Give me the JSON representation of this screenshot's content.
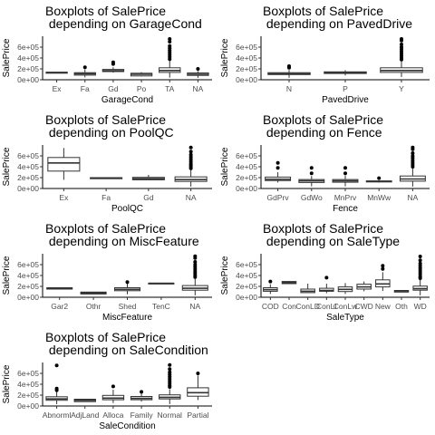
{
  "charts": [
    {
      "title_line1": "Boxplots of SalePrice",
      "title_line2": " depending on GarageCond",
      "xlabel": "GarageCond",
      "ylabel": "SalePrice",
      "categories": [
        "Ex",
        "Fa",
        "Gd",
        "Po",
        "TA",
        "NA"
      ]
    },
    {
      "title_line1": "Boxplots of SalePrice",
      "title_line2": " depending on PavedDrive",
      "xlabel": "PavedDrive",
      "ylabel": "SalePrice",
      "categories": [
        "N",
        "P",
        "Y"
      ]
    },
    {
      "title_line1": "Boxplots of SalePrice",
      "title_line2": " depending on PoolQC",
      "xlabel": "PoolQC",
      "ylabel": "SalePrice",
      "categories": [
        "Ex",
        "Fa",
        "Gd",
        "NA"
      ]
    },
    {
      "title_line1": "Boxplots of SalePrice",
      "title_line2": " depending on Fence",
      "xlabel": "Fence",
      "ylabel": "SalePrice",
      "categories": [
        "GdPrv",
        "GdWo",
        "MnPrv",
        "MnWw",
        "NA"
      ]
    },
    {
      "title_line1": "Boxplots of SalePrice",
      "title_line2": " depending on MiscFeature",
      "xlabel": "MiscFeature",
      "ylabel": "SalePrice",
      "categories": [
        "Gar2",
        "Othr",
        "Shed",
        "TenC",
        "NA"
      ]
    },
    {
      "title_line1": "Boxplots of SalePrice",
      "title_line2": " depending on SaleType",
      "xlabel": "SaleType",
      "ylabel": "SalePrice",
      "categories": [
        "COD",
        "Con",
        "ConLD",
        "ConLI",
        "ConLw",
        "CWD",
        "New",
        "Oth",
        "WD"
      ],
      "tick_labels": [
        "COD",
        "Con",
        "ConLD",
        "ConLI",
        "ConLw",
        "CWD",
        "New",
        "Oth",
        "WD"
      ]
    },
    {
      "title_line1": "Boxplots of SalePrice",
      "title_line2": " depending on SaleCondition",
      "xlabel": "SaleCondition",
      "ylabel": "SalePrice",
      "categories": [
        "Abnorml",
        "AdjLand",
        "Alloca",
        "Family",
        "Normal",
        "Partial"
      ],
      "tick_labels": [
        "Abnorml",
        "AdjLand",
        "Alloca",
        "Family",
        "Normal",
        "Partial"
      ]
    }
  ],
  "chart_data": [
    {
      "type": "box",
      "categories": [
        "Ex",
        "Fa",
        "Gd",
        "Po",
        "TA",
        "NA"
      ],
      "ylim": [
        0,
        800000
      ],
      "yticks": [
        0,
        200000,
        400000,
        600000
      ],
      "ytick_labels": [
        "0e+00",
        "2e+05",
        "4e+05",
        "6e+05"
      ],
      "boxes": [
        {
          "q1": 120000,
          "med": 130000,
          "q3": 140000,
          "lo": 120000,
          "hi": 140000,
          "out": []
        },
        {
          "q1": 85000,
          "med": 110000,
          "q3": 130000,
          "lo": 45000,
          "hi": 190000,
          "out": [
            230000
          ]
        },
        {
          "q1": 150000,
          "med": 165000,
          "q3": 190000,
          "lo": 130000,
          "hi": 230000,
          "out": [
            290000,
            320000
          ]
        },
        {
          "q1": 70000,
          "med": 100000,
          "q3": 120000,
          "lo": 60000,
          "hi": 140000,
          "out": []
        },
        {
          "q1": 135000,
          "med": 170000,
          "q3": 220000,
          "lo": 40000,
          "hi": 350000,
          "out": [
            380000,
            420000,
            460000,
            500000,
            540000,
            580000,
            620000,
            700000,
            750000
          ]
        },
        {
          "q1": 80000,
          "med": 100000,
          "q3": 125000,
          "lo": 35000,
          "hi": 160000,
          "out": [
            200000
          ]
        }
      ]
    },
    {
      "type": "box",
      "categories": [
        "N",
        "P",
        "Y"
      ],
      "ylim": [
        0,
        800000
      ],
      "yticks": [
        0,
        200000,
        400000,
        600000
      ],
      "ytick_labels": [
        "0e+00",
        "2e+05",
        "4e+05",
        "6e+05"
      ],
      "boxes": [
        {
          "q1": 95000,
          "med": 110000,
          "q3": 130000,
          "lo": 35000,
          "hi": 180000,
          "out": [
            220000,
            250000
          ]
        },
        {
          "q1": 115000,
          "med": 130000,
          "q3": 145000,
          "lo": 80000,
          "hi": 175000,
          "out": []
        },
        {
          "q1": 135000,
          "med": 170000,
          "q3": 220000,
          "lo": 50000,
          "hi": 340000,
          "out": [
            370000,
            400000,
            440000,
            480000,
            520000,
            560000,
            600000,
            650000,
            720000,
            750000
          ]
        }
      ]
    },
    {
      "type": "box",
      "categories": [
        "Ex",
        "Fa",
        "Gd",
        "NA"
      ],
      "ylim": [
        0,
        800000
      ],
      "yticks": [
        0,
        200000,
        400000,
        600000
      ],
      "ytick_labels": [
        "0e+00",
        "2e+05",
        "4e+05",
        "6e+05"
      ],
      "boxes": [
        {
          "q1": 320000,
          "med": 470000,
          "q3": 570000,
          "lo": 160000,
          "hi": 745000,
          "out": []
        },
        {
          "q1": 180000,
          "med": 190000,
          "q3": 200000,
          "lo": 180000,
          "hi": 200000,
          "out": []
        },
        {
          "q1": 160000,
          "med": 180000,
          "q3": 205000,
          "lo": 160000,
          "hi": 250000,
          "out": []
        },
        {
          "q1": 130000,
          "med": 163000,
          "q3": 214000,
          "lo": 35000,
          "hi": 340000,
          "out": [
            370000,
            400000,
            430000,
            460000,
            500000,
            540000,
            580000,
            620000,
            680000,
            755000
          ]
        }
      ]
    },
    {
      "type": "box",
      "categories": [
        "GdPrv",
        "GdWo",
        "MnPrv",
        "MnWw",
        "NA"
      ],
      "ylim": [
        0,
        800000
      ],
      "yticks": [
        0,
        200000,
        400000,
        600000
      ],
      "ytick_labels": [
        "0e+00",
        "2e+05",
        "4e+05",
        "6e+05"
      ],
      "boxes": [
        {
          "q1": 145000,
          "med": 170000,
          "q3": 210000,
          "lo": 110000,
          "hi": 300000,
          "out": [
            380000,
            470000
          ]
        },
        {
          "q1": 110000,
          "med": 140000,
          "q3": 165000,
          "lo": 40000,
          "hi": 230000,
          "out": [
            280000,
            380000
          ]
        },
        {
          "q1": 115000,
          "med": 140000,
          "q3": 165000,
          "lo": 40000,
          "hi": 240000,
          "out": [
            280000,
            380000
          ]
        },
        {
          "q1": 120000,
          "med": 130000,
          "q3": 140000,
          "lo": 110000,
          "hi": 150000,
          "out": [
            190000
          ]
        },
        {
          "q1": 135000,
          "med": 175000,
          "q3": 230000,
          "lo": 35000,
          "hi": 370000,
          "out": [
            400000,
            440000,
            480000,
            520000,
            560000,
            600000,
            650000,
            720000,
            755000
          ]
        }
      ]
    },
    {
      "type": "box",
      "categories": [
        "Gar2",
        "Othr",
        "Shed",
        "TenC",
        "NA"
      ],
      "ylim": [
        0,
        800000
      ],
      "yticks": [
        0,
        200000,
        400000,
        600000
      ],
      "ytick_labels": [
        "0e+00",
        "2e+05",
        "4e+05",
        "6e+05"
      ],
      "boxes": [
        {
          "q1": 150000,
          "med": 165000,
          "q3": 175000,
          "lo": 150000,
          "hi": 175000,
          "out": []
        },
        {
          "q1": 60000,
          "med": 80000,
          "q3": 95000,
          "lo": 55000,
          "hi": 100000,
          "out": []
        },
        {
          "q1": 120000,
          "med": 145000,
          "q3": 175000,
          "lo": 55000,
          "hi": 250000,
          "out": [
            280000
          ]
        },
        {
          "q1": 250000,
          "med": 255000,
          "q3": 260000,
          "lo": 250000,
          "hi": 260000,
          "out": []
        },
        {
          "q1": 130000,
          "med": 165000,
          "q3": 215000,
          "lo": 35000,
          "hi": 340000,
          "out": [
            370000,
            400000,
            440000,
            480000,
            520000,
            560000,
            600000,
            650000,
            720000,
            755000
          ]
        }
      ]
    },
    {
      "type": "box",
      "categories": [
        "COD",
        "Con",
        "ConLD",
        "ConLI",
        "ConLw",
        "CWD",
        "New",
        "Oth",
        "WD"
      ],
      "ylim": [
        0,
        800000
      ],
      "yticks": [
        0,
        200000,
        400000,
        600000
      ],
      "ytick_labels": [
        "0e+00",
        "2e+05",
        "4e+05",
        "6e+05"
      ],
      "boxes": [
        {
          "q1": 110000,
          "med": 140000,
          "q3": 175000,
          "lo": 60000,
          "hi": 240000,
          "out": [
            290000
          ]
        },
        {
          "q1": 250000,
          "med": 270000,
          "q3": 290000,
          "lo": 250000,
          "hi": 300000,
          "out": []
        },
        {
          "q1": 85000,
          "med": 110000,
          "q3": 150000,
          "lo": 80000,
          "hi": 250000,
          "out": []
        },
        {
          "q1": 110000,
          "med": 125000,
          "q3": 165000,
          "lo": 75000,
          "hi": 250000,
          "out": [
            360000
          ]
        },
        {
          "q1": 105000,
          "med": 145000,
          "q3": 190000,
          "lo": 60000,
          "hi": 260000,
          "out": []
        },
        {
          "q1": 150000,
          "med": 190000,
          "q3": 240000,
          "lo": 110000,
          "hi": 290000,
          "out": []
        },
        {
          "q1": 190000,
          "med": 245000,
          "q3": 320000,
          "lo": 115000,
          "hi": 460000,
          "out": [
            520000,
            580000
          ]
        },
        {
          "q1": 95000,
          "med": 115000,
          "q3": 125000,
          "lo": 90000,
          "hi": 130000,
          "out": []
        },
        {
          "q1": 130000,
          "med": 158000,
          "q3": 205000,
          "lo": 35000,
          "hi": 320000,
          "out": [
            350000,
            380000,
            420000,
            460000,
            500000,
            540000,
            580000,
            620000,
            680000,
            750000
          ]
        }
      ]
    },
    {
      "type": "box",
      "categories": [
        "Abnorml",
        "AdjLand",
        "Alloca",
        "Family",
        "Normal",
        "Partial"
      ],
      "ylim": [
        0,
        800000
      ],
      "yticks": [
        0,
        200000,
        400000,
        600000
      ],
      "ytick_labels": [
        "0e+00",
        "2e+05",
        "4e+05",
        "6e+05"
      ],
      "boxes": [
        {
          "q1": 105000,
          "med": 130000,
          "q3": 170000,
          "lo": 35000,
          "hi": 260000,
          "out": [
            290000,
            320000,
            745000
          ]
        },
        {
          "q1": 80000,
          "med": 105000,
          "q3": 125000,
          "lo": 80000,
          "hi": 130000,
          "out": []
        },
        {
          "q1": 115000,
          "med": 145000,
          "q3": 195000,
          "lo": 55000,
          "hi": 300000,
          "out": [
            360000
          ]
        },
        {
          "q1": 115000,
          "med": 140000,
          "q3": 175000,
          "lo": 80000,
          "hi": 240000,
          "out": [
            260000
          ]
        },
        {
          "q1": 130000,
          "med": 160000,
          "q3": 205000,
          "lo": 35000,
          "hi": 310000,
          "out": [
            350000,
            380000,
            420000,
            460000,
            500000,
            540000,
            580000,
            620000,
            680000,
            755000
          ]
        },
        {
          "q1": 180000,
          "med": 245000,
          "q3": 335000,
          "lo": 110000,
          "hi": 560000,
          "out": [
            600000
          ]
        }
      ]
    }
  ]
}
